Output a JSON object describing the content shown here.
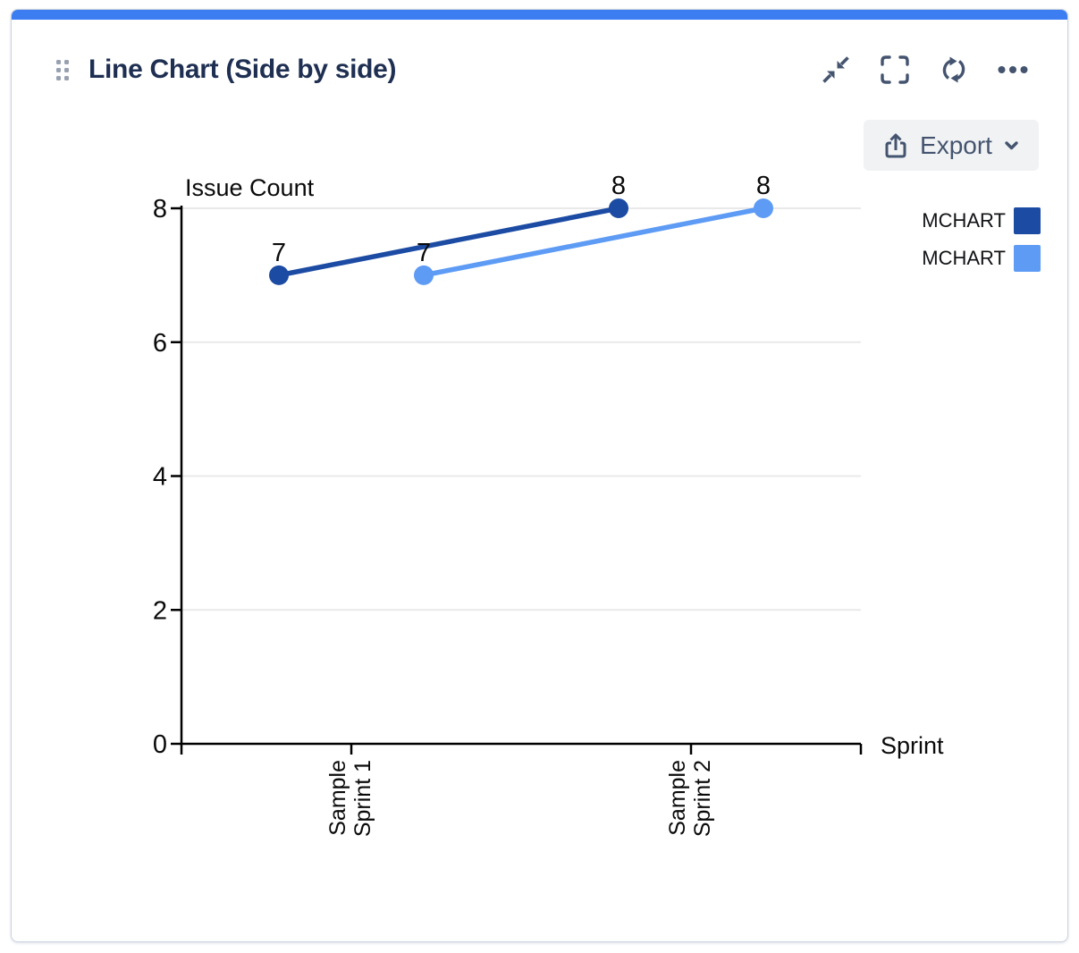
{
  "card": {
    "title": "Line Chart (Side by side)",
    "accent_color": "#3D7DF2",
    "toolbar": {
      "icons": [
        "collapse-icon",
        "fullscreen-icon",
        "refresh-icon",
        "more-icon"
      ]
    },
    "export_label": "Export",
    "export_icon": "share-export-icon",
    "export_chevron": "chevron-down-icon",
    "drag_icon": "drag-handle-dots-icon"
  },
  "legend": {
    "position": "right",
    "items": [
      {
        "label": "MCHART",
        "color": "#1C4BA3"
      },
      {
        "label": "MCHART",
        "color": "#5D9BF5"
      }
    ]
  },
  "chart_data": {
    "type": "line",
    "layout": "side-by-side",
    "title": "",
    "xlabel": "Sprint",
    "ylabel": "Issue Count",
    "categories": [
      "Sample Sprint 1",
      "Sample Sprint 2"
    ],
    "series": [
      {
        "name": "MCHART",
        "color": "#1C4BA3",
        "values": [
          7,
          8
        ]
      },
      {
        "name": "MCHART",
        "color": "#5D9BF5",
        "values": [
          7,
          8
        ]
      }
    ],
    "ylim": [
      0,
      8
    ],
    "yticks": [
      0,
      2,
      4,
      6,
      8
    ],
    "grid": true,
    "grid_color": "#E9E9E9",
    "axis_color": "#000000",
    "data_labels": true,
    "legend_position": "right"
  }
}
